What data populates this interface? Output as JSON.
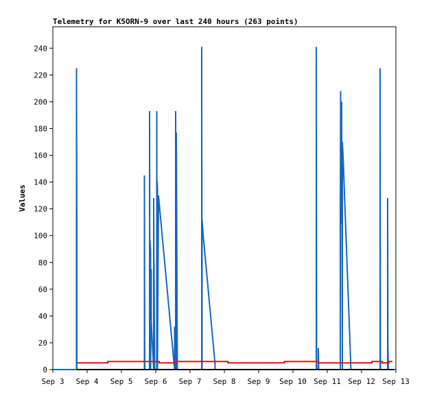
{
  "chart_data": {
    "type": "line",
    "title": "Telemetry for K5ORN-9 over last 240 hours (263 points)",
    "xlabel": "",
    "ylabel": "Values",
    "xlim": [
      3.0,
      13.0
    ],
    "ylim": [
      0,
      256
    ],
    "x_ticks": [
      "Sep 3",
      "Sep 4",
      "Sep 5",
      "Sep 6",
      "Sep 7",
      "Sep 8",
      "Sep 9",
      "Sep 10",
      "Sep 11",
      "Sep 12",
      "Sep 13"
    ],
    "y_ticks": [
      0,
      20,
      40,
      60,
      80,
      100,
      120,
      140,
      160,
      180,
      200,
      220,
      240
    ],
    "grid": false,
    "series": [
      {
        "color": "#1565c0",
        "x": [
          3.0,
          3.69,
          3.69,
          3.7,
          3.7,
          3.71,
          3.71,
          5.67,
          5.67,
          5.68,
          5.82,
          5.82,
          5.83,
          5.83,
          5.85,
          5.85,
          5.87,
          5.87,
          5.94,
          5.94,
          5.95,
          5.95,
          5.97,
          5.97,
          6.03,
          6.03,
          6.04,
          6.04,
          6.05,
          6.05,
          6.08,
          6.55,
          6.55,
          6.56,
          6.56,
          6.58,
          6.58,
          6.6,
          6.6,
          6.63,
          6.63,
          6.64,
          6.64,
          6.65,
          7.34,
          7.34,
          7.35,
          7.35,
          7.38,
          7.73,
          7.73,
          10.68,
          10.68,
          10.69,
          10.69,
          10.74,
          10.74,
          10.75,
          11.38,
          11.38,
          11.39,
          11.39,
          11.42,
          11.42,
          11.44,
          11.44,
          11.46,
          11.68,
          11.69,
          12.54,
          12.54,
          12.55,
          12.55,
          12.76,
          12.76,
          12.77,
          12.77,
          12.78,
          12.8,
          12.8,
          13.0
        ],
        "values": [
          0,
          0,
          225,
          112,
          0,
          0,
          0,
          0,
          145,
          0,
          0,
          193,
          0,
          97,
          89,
          0,
          75,
          35,
          0,
          128,
          47,
          80,
          0,
          0,
          0,
          193,
          0,
          141,
          135,
          0,
          130,
          0,
          32,
          0,
          32,
          0,
          193,
          0,
          177,
          0,
          0,
          0,
          0,
          0,
          0,
          241,
          0,
          112,
          101,
          4,
          0,
          0,
          241,
          0,
          0,
          0,
          16,
          0,
          0,
          112,
          208,
          109,
          200,
          185,
          0,
          170,
          160,
          7,
          0,
          0,
          225,
          0,
          0,
          0,
          128,
          0,
          16,
          0,
          0,
          0,
          0
        ]
      },
      {
        "color": "#e01010",
        "x": [
          3.7,
          4.6,
          4.6,
          5.6,
          5.6,
          6.1,
          6.1,
          6.3,
          6.3,
          6.6,
          6.6,
          7.3,
          7.3,
          7.75,
          7.75,
          8.1,
          8.1,
          9.0,
          9.0,
          9.75,
          9.75,
          10.4,
          10.4,
          10.75,
          10.75,
          11.6,
          11.6,
          11.8,
          11.8,
          12.0,
          12.0,
          12.3,
          12.3,
          12.6,
          12.6,
          12.8,
          12.8,
          12.9
        ],
        "values": [
          5,
          5,
          6,
          6,
          6,
          6,
          5,
          5,
          5,
          5,
          6,
          6,
          6,
          6,
          6,
          6,
          5,
          5,
          5,
          5,
          6,
          6,
          6,
          6,
          5,
          5,
          5,
          5,
          5,
          5,
          5,
          5,
          6,
          6,
          5,
          5,
          6,
          6
        ]
      },
      {
        "color": "#000000",
        "x": [
          3.7,
          12.95
        ],
        "values": [
          0,
          0
        ]
      }
    ]
  }
}
